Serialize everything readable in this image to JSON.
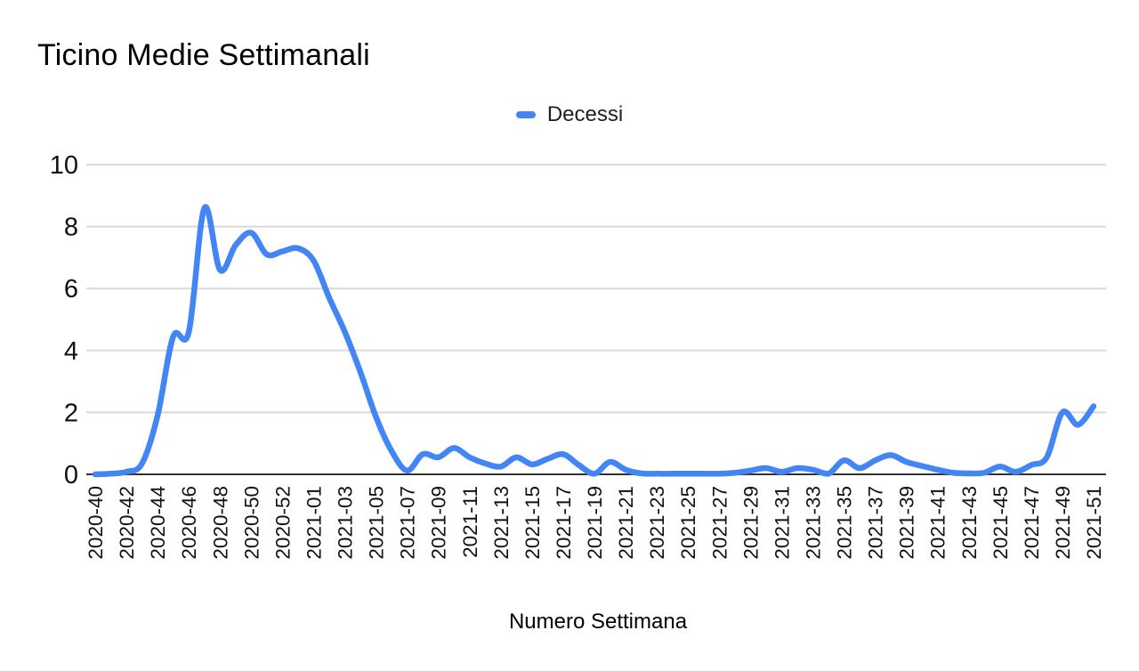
{
  "title": "Ticino Medie Settimanali",
  "x_axis_title": "Numero Settimana",
  "legend": {
    "position": "top-center",
    "entries": [
      {
        "label": "Decessi",
        "color": "#4285F4"
      }
    ]
  },
  "colors": {
    "series_line": "#4285F4",
    "gridline": "#d9d9d9",
    "axis_baseline": "#333333",
    "tick_text": "#111111",
    "background": "#ffffff"
  },
  "chart_data": {
    "type": "line",
    "smooth": true,
    "grid": true,
    "title": "Ticino Medie Settimanali",
    "xlabel": "Numero Settimana",
    "ylabel": "",
    "ylim": [
      0,
      10
    ],
    "yticks": [
      0,
      2,
      4,
      6,
      8,
      10
    ],
    "x_tick_every": 2,
    "x": [
      "2020-40",
      "2020-41",
      "2020-42",
      "2020-43",
      "2020-44",
      "2020-45",
      "2020-46",
      "2020-47",
      "2020-48",
      "2020-49",
      "2020-50",
      "2020-51",
      "2020-52",
      "2020-53",
      "2021-01",
      "2021-02",
      "2021-03",
      "2021-04",
      "2021-05",
      "2021-06",
      "2021-07",
      "2021-08",
      "2021-09",
      "2021-10",
      "2021-11",
      "2021-12",
      "2021-13",
      "2021-14",
      "2021-15",
      "2021-16",
      "2021-17",
      "2021-18",
      "2021-19",
      "2021-20",
      "2021-21",
      "2021-22",
      "2021-23",
      "2021-24",
      "2021-25",
      "2021-26",
      "2021-27",
      "2021-28",
      "2021-29",
      "2021-30",
      "2021-31",
      "2021-32",
      "2021-33",
      "2021-34",
      "2021-35",
      "2021-36",
      "2021-37",
      "2021-38",
      "2021-39",
      "2021-40",
      "2021-41",
      "2021-42",
      "2021-43",
      "2021-44",
      "2021-45",
      "2021-46",
      "2021-47",
      "2021-48",
      "2021-49",
      "2021-50",
      "2021-51"
    ],
    "series": [
      {
        "name": "Decessi",
        "color": "#4285F4",
        "values": [
          0.0,
          0.02,
          0.08,
          0.35,
          1.9,
          4.45,
          4.6,
          8.6,
          6.6,
          7.4,
          7.8,
          7.1,
          7.2,
          7.3,
          6.9,
          5.7,
          4.6,
          3.3,
          1.85,
          0.75,
          0.12,
          0.65,
          0.55,
          0.85,
          0.55,
          0.35,
          0.25,
          0.55,
          0.32,
          0.5,
          0.65,
          0.3,
          0.02,
          0.4,
          0.15,
          0.03,
          0.02,
          0.02,
          0.02,
          0.02,
          0.02,
          0.05,
          0.12,
          0.2,
          0.08,
          0.2,
          0.15,
          0.02,
          0.45,
          0.2,
          0.45,
          0.62,
          0.4,
          0.27,
          0.15,
          0.05,
          0.03,
          0.05,
          0.25,
          0.08,
          0.3,
          0.55,
          2.0,
          1.6,
          2.2
        ]
      }
    ],
    "legend_position": "top"
  }
}
